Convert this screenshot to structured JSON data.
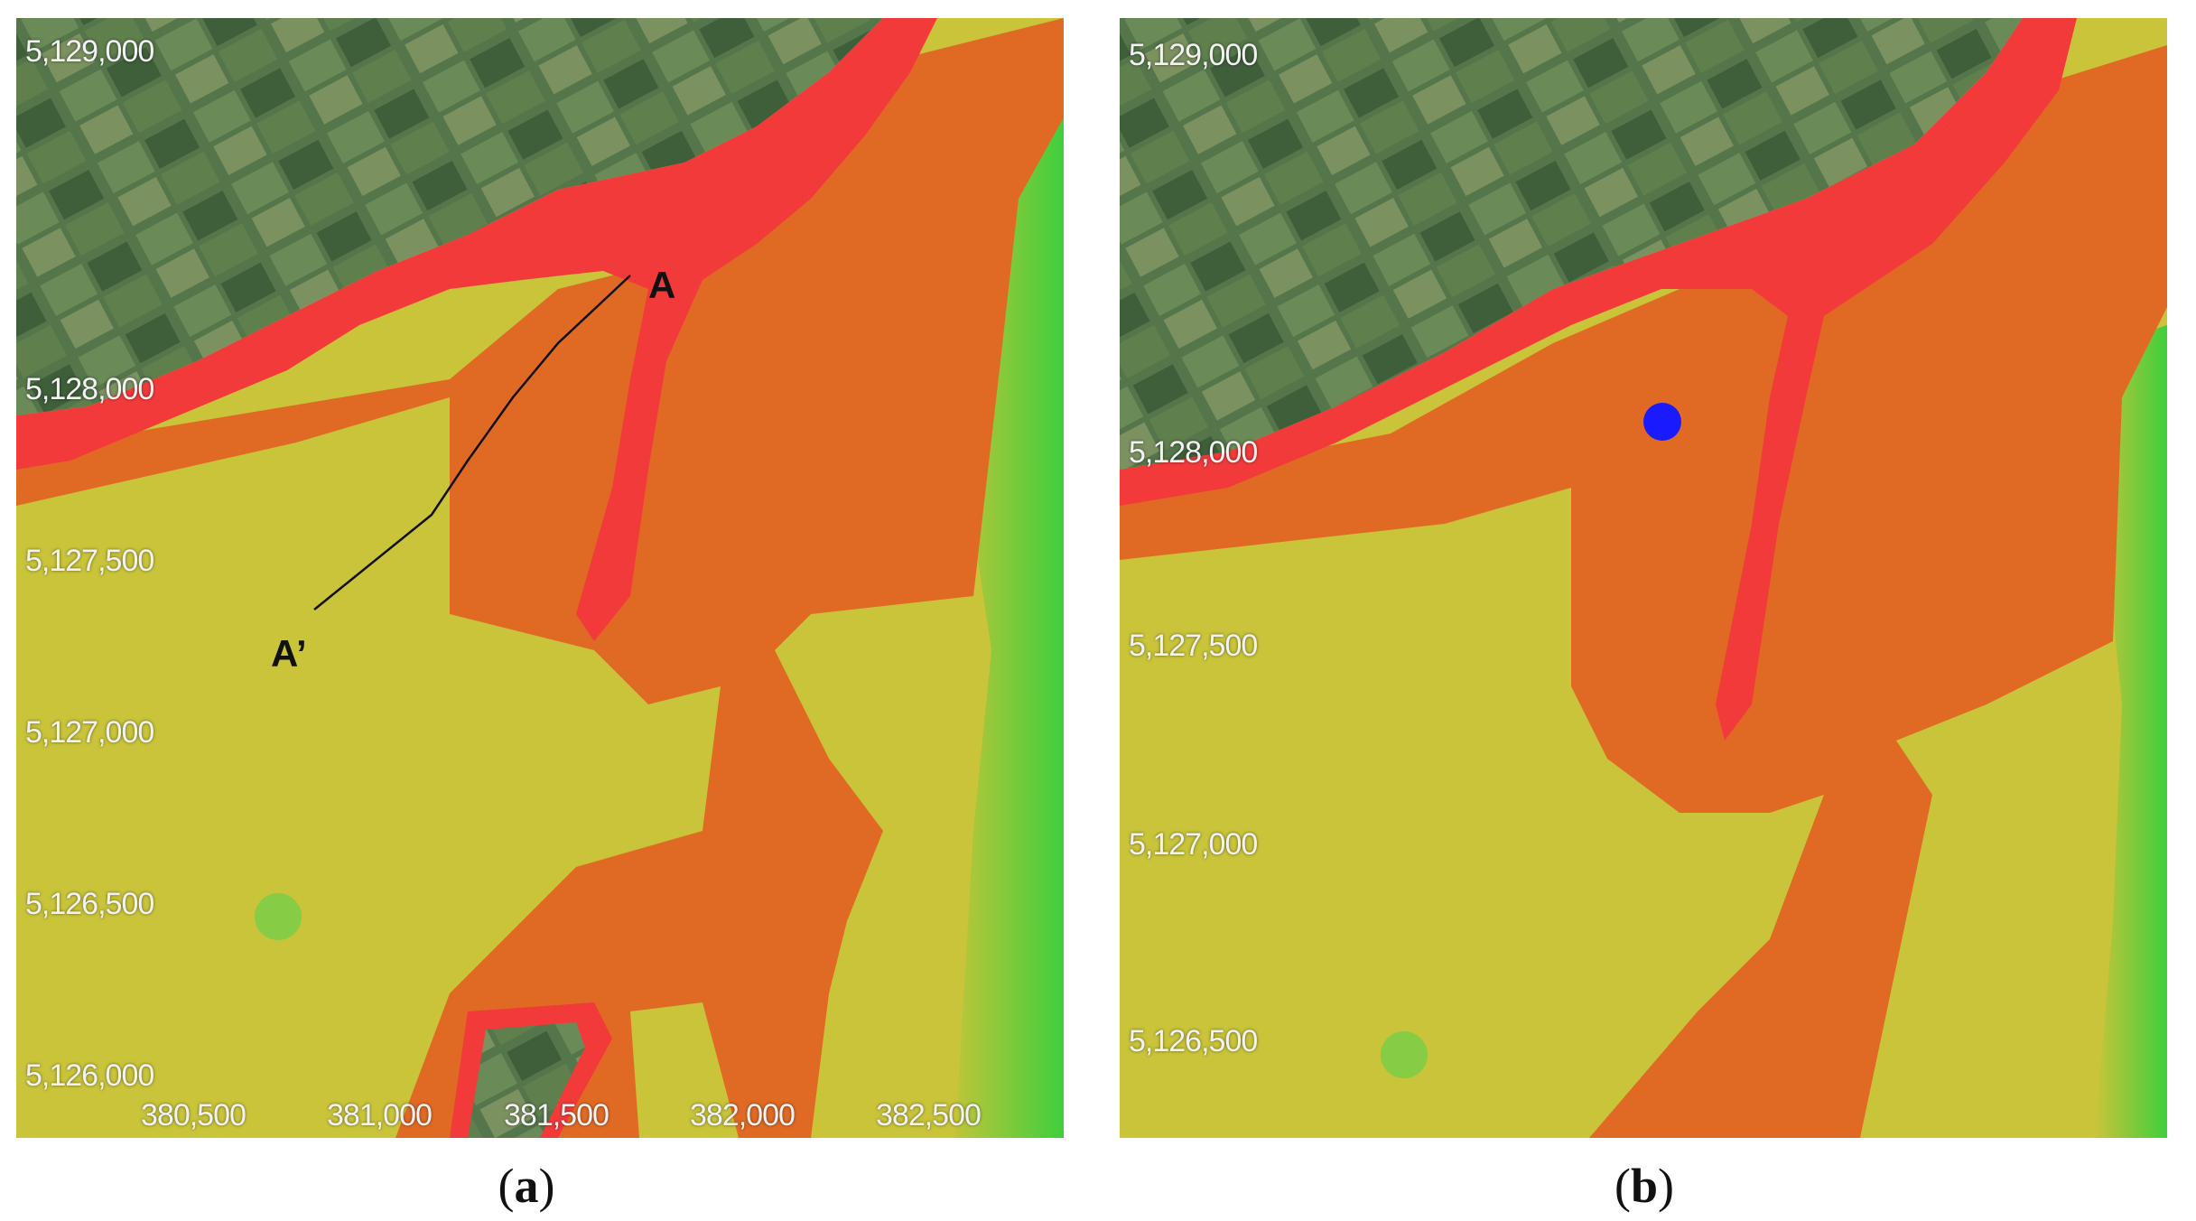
{
  "panels": [
    {
      "id": "a",
      "caption_letter": "a",
      "y_ticks": [
        "5,129,000",
        "5,128,000",
        "5,127,500",
        "5,127,000",
        "5,126,500",
        "5,126,000"
      ],
      "x_ticks": [
        "380,500",
        "381,000",
        "381,500",
        "382,000",
        "382,500"
      ],
      "section_line": {
        "start_label": "A",
        "end_label": "A’"
      }
    },
    {
      "id": "b",
      "caption_letter": "b",
      "y_ticks": [
        "5,129,000",
        "5,128,000",
        "5,127,500",
        "5,127,000",
        "5,126,500"
      ],
      "point_marker": {
        "color": "#1a1aff"
      }
    }
  ],
  "legend_colors": {
    "high": "#f23a3a",
    "medium_high": "#e06a24",
    "medium": "#c9c43a",
    "low": "#38c93a",
    "land": "#4e6f44"
  }
}
